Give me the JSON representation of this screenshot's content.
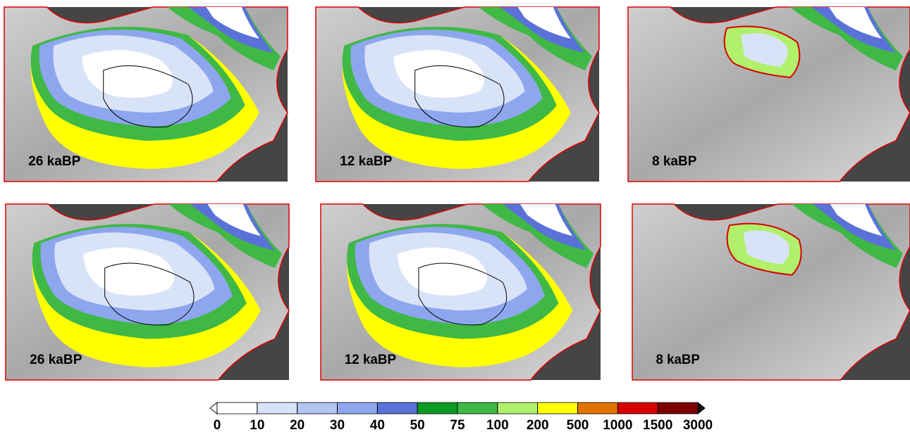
{
  "panels": [
    {
      "label": "26 kaBP"
    },
    {
      "label": "12 kaBP"
    },
    {
      "label": "8 kaBP"
    },
    {
      "label": "26 kaBP"
    },
    {
      "label": "12 kaBP"
    },
    {
      "label": "8 kaBP"
    }
  ],
  "colorbar": {
    "ticks": [
      0,
      10,
      20,
      30,
      40,
      50,
      75,
      100,
      200,
      500,
      1000,
      1500,
      3000
    ],
    "colors": [
      "#ffffff",
      "#d9e3f8",
      "#b3c6f2",
      "#8ea6ee",
      "#5a72d8",
      "#0b9a22",
      "#3fb846",
      "#b0f06c",
      "#ffff00",
      "#e27200",
      "#d60000",
      "#7c0000"
    ],
    "under_color": "#ffffff",
    "over_color": "#111111"
  }
}
